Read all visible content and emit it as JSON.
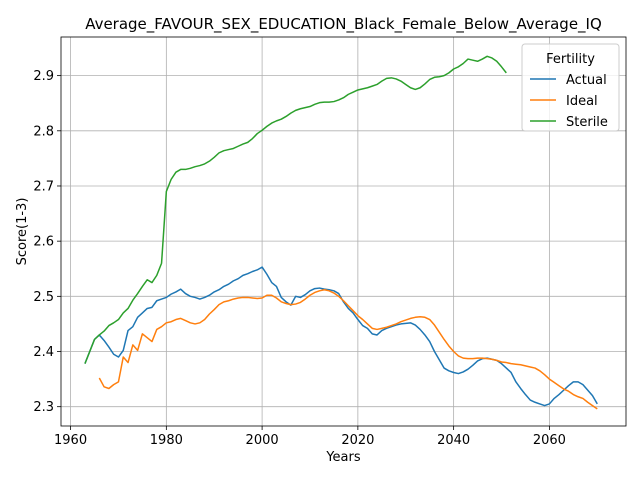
{
  "chart_data": {
    "type": "line",
    "title": "Average_FAVOUR_SEX_EDUCATION_Black_Female_Below_Average_IQ",
    "xlabel": "Years",
    "ylabel": "Score(1-3)",
    "xlim": [
      1958,
      2076
    ],
    "ylim": [
      2.265,
      2.97
    ],
    "xticks": [
      1960,
      1980,
      2000,
      2020,
      2040,
      2060
    ],
    "yticks": [
      2.3,
      2.4,
      2.5,
      2.6,
      2.7,
      2.8,
      2.9
    ],
    "xtick_labels": [
      "1960",
      "1980",
      "2000",
      "2020",
      "2040",
      "2060"
    ],
    "ytick_labels": [
      "2.3",
      "2.4",
      "2.5",
      "2.6",
      "2.7",
      "2.8",
      "2.9"
    ],
    "grid": true,
    "legend": {
      "title": "Fertility",
      "placement": "top-right"
    },
    "series": [
      {
        "name": "Actual",
        "color": "#1f77b4",
        "x": [
          1963,
          1964,
          1965,
          1966,
          1967,
          1968,
          1969,
          1970,
          1971,
          1972,
          1973,
          1974,
          1975,
          1976,
          1977,
          1978,
          1979,
          1980,
          1981,
          1982,
          1983,
          1984,
          1985,
          1986,
          1987,
          1988,
          1989,
          1990,
          1991,
          1992,
          1993,
          1994,
          1995,
          1996,
          1997,
          1998,
          1999,
          2000,
          2001,
          2002,
          2003,
          2004,
          2005,
          2006,
          2007,
          2008,
          2009,
          2010,
          2011,
          2012,
          2013,
          2014,
          2015,
          2016,
          2017,
          2018,
          2019,
          2020,
          2021,
          2022,
          2023,
          2024,
          2025,
          2026,
          2027,
          2028,
          2029,
          2030,
          2031,
          2032,
          2033,
          2034,
          2035,
          2036,
          2037,
          2038,
          2039,
          2040,
          2041,
          2042,
          2043,
          2044,
          2045,
          2046,
          2047,
          2048,
          2049,
          2050,
          2051,
          2052,
          2053,
          2054,
          2055,
          2056,
          2057,
          2058,
          2059,
          2060,
          2061,
          2062,
          2063,
          2064,
          2065,
          2066,
          2067,
          2068,
          2069,
          2070
        ],
        "values": [
          2.378,
          2.4,
          2.422,
          2.43,
          2.42,
          2.408,
          2.395,
          2.39,
          2.402,
          2.438,
          2.445,
          2.462,
          2.47,
          2.478,
          2.48,
          2.492,
          2.495,
          2.498,
          2.504,
          2.508,
          2.513,
          2.505,
          2.5,
          2.498,
          2.495,
          2.498,
          2.502,
          2.508,
          2.512,
          2.518,
          2.522,
          2.528,
          2.532,
          2.538,
          2.541,
          2.545,
          2.548,
          2.553,
          2.54,
          2.525,
          2.518,
          2.498,
          2.49,
          2.484,
          2.5,
          2.498,
          2.503,
          2.51,
          2.514,
          2.515,
          2.513,
          2.512,
          2.51,
          2.505,
          2.49,
          2.478,
          2.47,
          2.458,
          2.447,
          2.442,
          2.432,
          2.43,
          2.438,
          2.442,
          2.445,
          2.448,
          2.45,
          2.451,
          2.452,
          2.448,
          2.44,
          2.43,
          2.418,
          2.4,
          2.385,
          2.37,
          2.365,
          2.362,
          2.36,
          2.363,
          2.368,
          2.375,
          2.383,
          2.387,
          2.388,
          2.386,
          2.384,
          2.378,
          2.37,
          2.362,
          2.345,
          2.333,
          2.322,
          2.312,
          2.308,
          2.305,
          2.302,
          2.305,
          2.315,
          2.322,
          2.33,
          2.338,
          2.345,
          2.345,
          2.34,
          2.33,
          2.32,
          2.305
        ]
      },
      {
        "name": "Ideal",
        "color": "#ff7f0e",
        "x": [
          1966,
          1967,
          1968,
          1969,
          1970,
          1971,
          1972,
          1973,
          1974,
          1975,
          1976,
          1977,
          1978,
          1979,
          1980,
          1981,
          1982,
          1983,
          1984,
          1985,
          1986,
          1987,
          1988,
          1989,
          1990,
          1991,
          1992,
          1993,
          1994,
          1995,
          1996,
          1997,
          1998,
          1999,
          2000,
          2001,
          2002,
          2003,
          2004,
          2005,
          2006,
          2007,
          2008,
          2009,
          2010,
          2011,
          2012,
          2013,
          2014,
          2015,
          2016,
          2017,
          2018,
          2019,
          2020,
          2021,
          2022,
          2023,
          2024,
          2025,
          2026,
          2027,
          2028,
          2029,
          2030,
          2031,
          2032,
          2033,
          2034,
          2035,
          2036,
          2037,
          2038,
          2039,
          2040,
          2041,
          2042,
          2043,
          2044,
          2045,
          2046,
          2047,
          2048,
          2049,
          2050,
          2051,
          2052,
          2053,
          2054,
          2055,
          2056,
          2057,
          2058,
          2059,
          2060,
          2061,
          2062,
          2063,
          2064,
          2065,
          2066,
          2067,
          2068,
          2069,
          2070
        ],
        "values": [
          2.352,
          2.336,
          2.333,
          2.34,
          2.345,
          2.39,
          2.38,
          2.412,
          2.402,
          2.432,
          2.425,
          2.418,
          2.44,
          2.445,
          2.452,
          2.454,
          2.458,
          2.46,
          2.456,
          2.452,
          2.45,
          2.452,
          2.458,
          2.468,
          2.476,
          2.485,
          2.49,
          2.492,
          2.495,
          2.497,
          2.498,
          2.498,
          2.497,
          2.496,
          2.497,
          2.502,
          2.502,
          2.497,
          2.49,
          2.487,
          2.485,
          2.486,
          2.489,
          2.495,
          2.502,
          2.507,
          2.51,
          2.512,
          2.51,
          2.506,
          2.5,
          2.492,
          2.483,
          2.474,
          2.465,
          2.458,
          2.45,
          2.442,
          2.44,
          2.442,
          2.444,
          2.447,
          2.45,
          2.454,
          2.457,
          2.46,
          2.462,
          2.463,
          2.462,
          2.458,
          2.448,
          2.435,
          2.422,
          2.41,
          2.4,
          2.392,
          2.388,
          2.387,
          2.387,
          2.388,
          2.388,
          2.387,
          2.386,
          2.384,
          2.381,
          2.38,
          2.378,
          2.377,
          2.376,
          2.374,
          2.372,
          2.37,
          2.365,
          2.358,
          2.35,
          2.344,
          2.338,
          2.332,
          2.328,
          2.322,
          2.318,
          2.315,
          2.308,
          2.302,
          2.296
        ]
      },
      {
        "name": "Sterile",
        "color": "#2ca02c",
        "x": [
          1963,
          1964,
          1965,
          1966,
          1967,
          1968,
          1969,
          1970,
          1971,
          1972,
          1973,
          1974,
          1975,
          1976,
          1977,
          1978,
          1979,
          1980,
          1981,
          1982,
          1983,
          1984,
          1985,
          1986,
          1987,
          1988,
          1989,
          1990,
          1991,
          1992,
          1993,
          1994,
          1995,
          1996,
          1997,
          1998,
          1999,
          2000,
          2001,
          2002,
          2003,
          2004,
          2005,
          2006,
          2007,
          2008,
          2009,
          2010,
          2011,
          2012,
          2013,
          2014,
          2015,
          2016,
          2017,
          2018,
          2019,
          2020,
          2021,
          2022,
          2023,
          2024,
          2025,
          2026,
          2027,
          2028,
          2029,
          2030,
          2031,
          2032,
          2033,
          2034,
          2035,
          2036,
          2037,
          2038,
          2039,
          2040,
          2041,
          2042,
          2043,
          2044,
          2045,
          2046,
          2047,
          2048,
          2049,
          2050,
          2051
        ],
        "values": [
          2.378,
          2.4,
          2.422,
          2.43,
          2.437,
          2.447,
          2.452,
          2.458,
          2.47,
          2.478,
          2.493,
          2.505,
          2.518,
          2.53,
          2.525,
          2.538,
          2.56,
          2.69,
          2.712,
          2.725,
          2.73,
          2.73,
          2.732,
          2.735,
          2.737,
          2.74,
          2.745,
          2.752,
          2.76,
          2.764,
          2.766,
          2.768,
          2.772,
          2.776,
          2.779,
          2.786,
          2.795,
          2.801,
          2.808,
          2.814,
          2.818,
          2.821,
          2.826,
          2.832,
          2.837,
          2.84,
          2.842,
          2.844,
          2.848,
          2.851,
          2.852,
          2.852,
          2.853,
          2.856,
          2.86,
          2.866,
          2.87,
          2.874,
          2.876,
          2.878,
          2.881,
          2.884,
          2.89,
          2.895,
          2.896,
          2.894,
          2.89,
          2.884,
          2.878,
          2.875,
          2.878,
          2.885,
          2.893,
          2.897,
          2.898,
          2.9,
          2.905,
          2.912,
          2.916,
          2.922,
          2.93,
          2.928,
          2.926,
          2.93,
          2.935,
          2.932,
          2.926,
          2.916,
          2.905
        ]
      }
    ]
  }
}
